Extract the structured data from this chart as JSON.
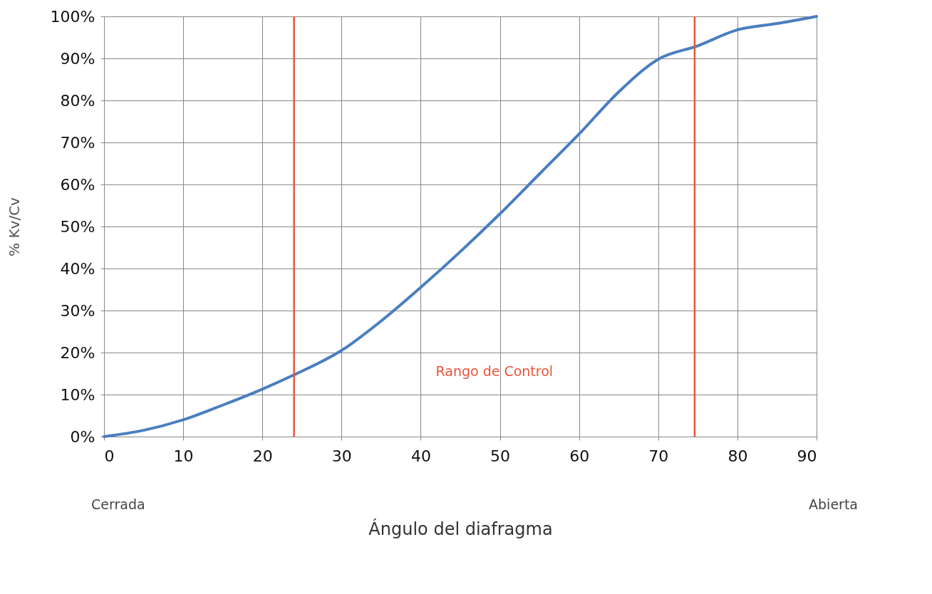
{
  "chart_data": {
    "type": "line",
    "xlabel": "Ángulo del diafragma",
    "ylabel": "% Kv/Cv",
    "x": [
      0,
      5,
      10,
      15,
      20,
      24,
      30,
      35,
      40,
      45,
      50,
      55,
      60,
      65,
      70,
      75,
      80,
      85,
      90
    ],
    "series": [
      {
        "color": "#4a7ebf",
        "values": [
          0,
          1.5,
          4,
          7.5,
          11.3,
          14.7,
          20.5,
          27.5,
          35.5,
          44,
          53,
          62.5,
          72,
          82,
          89.8,
          93,
          96.8,
          98.3,
          100
        ]
      }
    ],
    "xlim": [
      0,
      90
    ],
    "xticks": [
      0,
      10,
      20,
      30,
      40,
      50,
      60,
      70,
      80,
      90
    ],
    "ylim": [
      0,
      100
    ],
    "yticks": [
      {
        "value": 0,
        "label": "0%"
      },
      {
        "value": 10,
        "label": "10%"
      },
      {
        "value": 20,
        "label": "20%"
      },
      {
        "value": 30,
        "label": "30%"
      },
      {
        "value": 40,
        "label": "40%"
      },
      {
        "value": 50,
        "label": "50%"
      },
      {
        "value": 60,
        "label": "60%"
      },
      {
        "value": 70,
        "label": "70%"
      },
      {
        "value": 80,
        "label": "80%"
      },
      {
        "value": 90,
        "label": "90%"
      },
      {
        "value": 100,
        "label": "100%"
      }
    ],
    "ref_lines": [
      {
        "axis": "x",
        "value": 24,
        "color": "#e8553a"
      },
      {
        "axis": "x",
        "value": 74.6,
        "color": "#e8553a"
      }
    ],
    "annotations": [
      "Rango de Control",
      "Cerrada",
      "Abierta"
    ],
    "grid": true,
    "marker": "none",
    "line_style": "solid"
  }
}
